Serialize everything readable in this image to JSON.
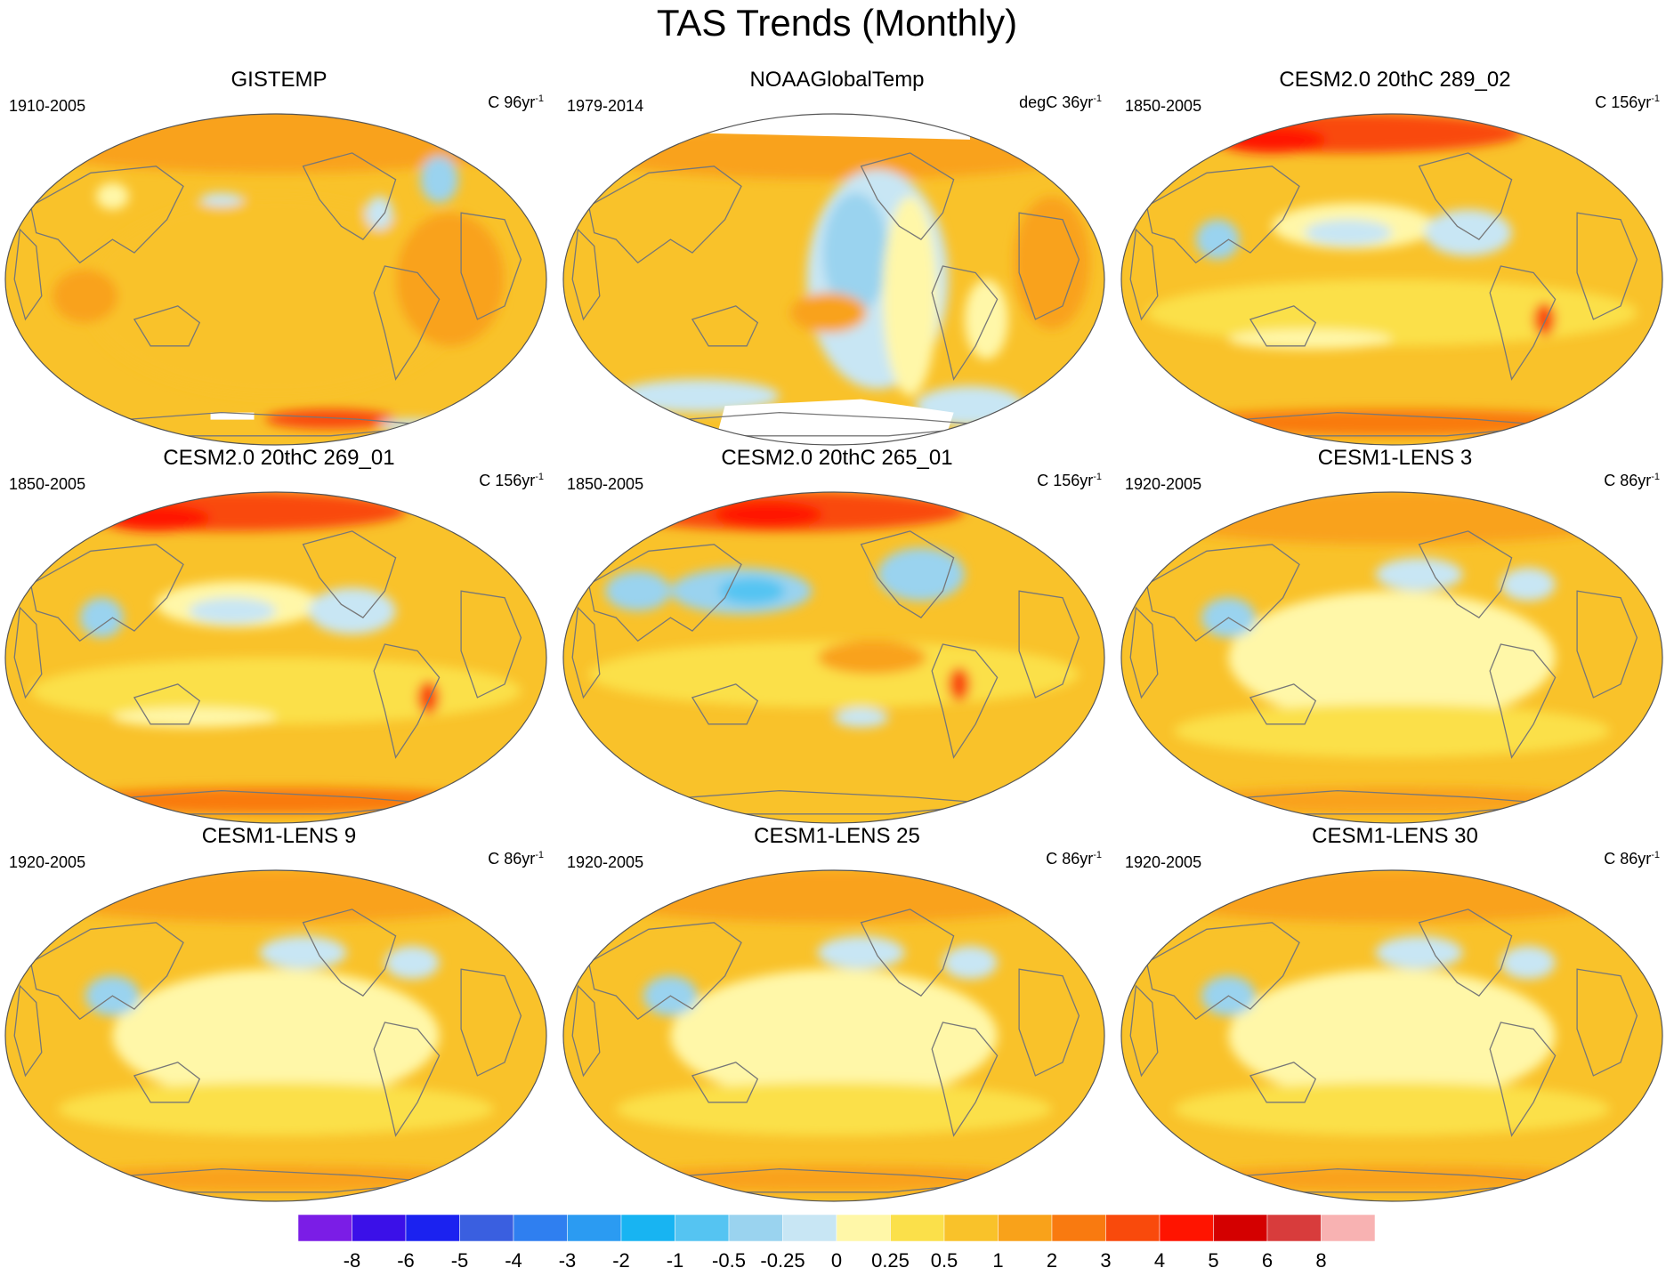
{
  "figure": {
    "title": "TAS Trends (Monthly)"
  },
  "panels": [
    {
      "id": "gistemp",
      "title": "GISTEMP",
      "period": "1910-2005",
      "units": "C 96yr",
      "units_sup": "-1",
      "pattern": "gistemp"
    },
    {
      "id": "noaa",
      "title": "NOAAGlobalTemp",
      "period": "1979-2014",
      "units": "degC 36yr",
      "units_sup": "-1",
      "pattern": "noaa"
    },
    {
      "id": "cesm2-289",
      "title": "CESM2.0 20thC 289_02",
      "period": "1850-2005",
      "units": "C 156yr",
      "units_sup": "-1",
      "pattern": "cesm2"
    },
    {
      "id": "cesm2-269",
      "title": "CESM2.0 20thC 269_01",
      "period": "1850-2005",
      "units": "C 156yr",
      "units_sup": "-1",
      "pattern": "cesm2"
    },
    {
      "id": "cesm2-265",
      "title": "CESM2.0 20thC 265_01",
      "period": "1850-2005",
      "units": "C 156yr",
      "units_sup": "-1",
      "pattern": "cesm2b"
    },
    {
      "id": "lens3",
      "title": "CESM1-LENS 3",
      "period": "1920-2005",
      "units": "C 86yr",
      "units_sup": "-1",
      "pattern": "lens"
    },
    {
      "id": "lens9",
      "title": "CESM1-LENS 9",
      "period": "1920-2005",
      "units": "C 86yr",
      "units_sup": "-1",
      "pattern": "lens"
    },
    {
      "id": "lens25",
      "title": "CESM1-LENS 25",
      "period": "1920-2005",
      "units": "C 86yr",
      "units_sup": "-1",
      "pattern": "lens"
    },
    {
      "id": "lens30",
      "title": "CESM1-LENS 30",
      "period": "1920-2005",
      "units": "C 86yr",
      "units_sup": "-1",
      "pattern": "lens"
    }
  ],
  "colorbar": {
    "levels": [
      "-8",
      "-6",
      "-5",
      "-4",
      "-3",
      "-2",
      "-1",
      "-0.5",
      "-0.25",
      "0",
      "0.25",
      "0.5",
      "1",
      "2",
      "3",
      "4",
      "5",
      "6",
      "8"
    ],
    "colors": [
      "#7b1de6",
      "#3b10e8",
      "#1b22f0",
      "#3a5fe0",
      "#2f7ff0",
      "#2b9bf2",
      "#18b4f2",
      "#55c4f2",
      "#9ad3ef",
      "#c8e6f4",
      "#fff7a8",
      "#fbe04a",
      "#f9c22a",
      "#f9a21a",
      "#f97a10",
      "#f94a0c",
      "#ff1400",
      "#d40000",
      "#d83c3c",
      "#f8b2b2"
    ]
  },
  "map_colors": {
    "coast": "#777777",
    "no_data": "#ffffff"
  }
}
